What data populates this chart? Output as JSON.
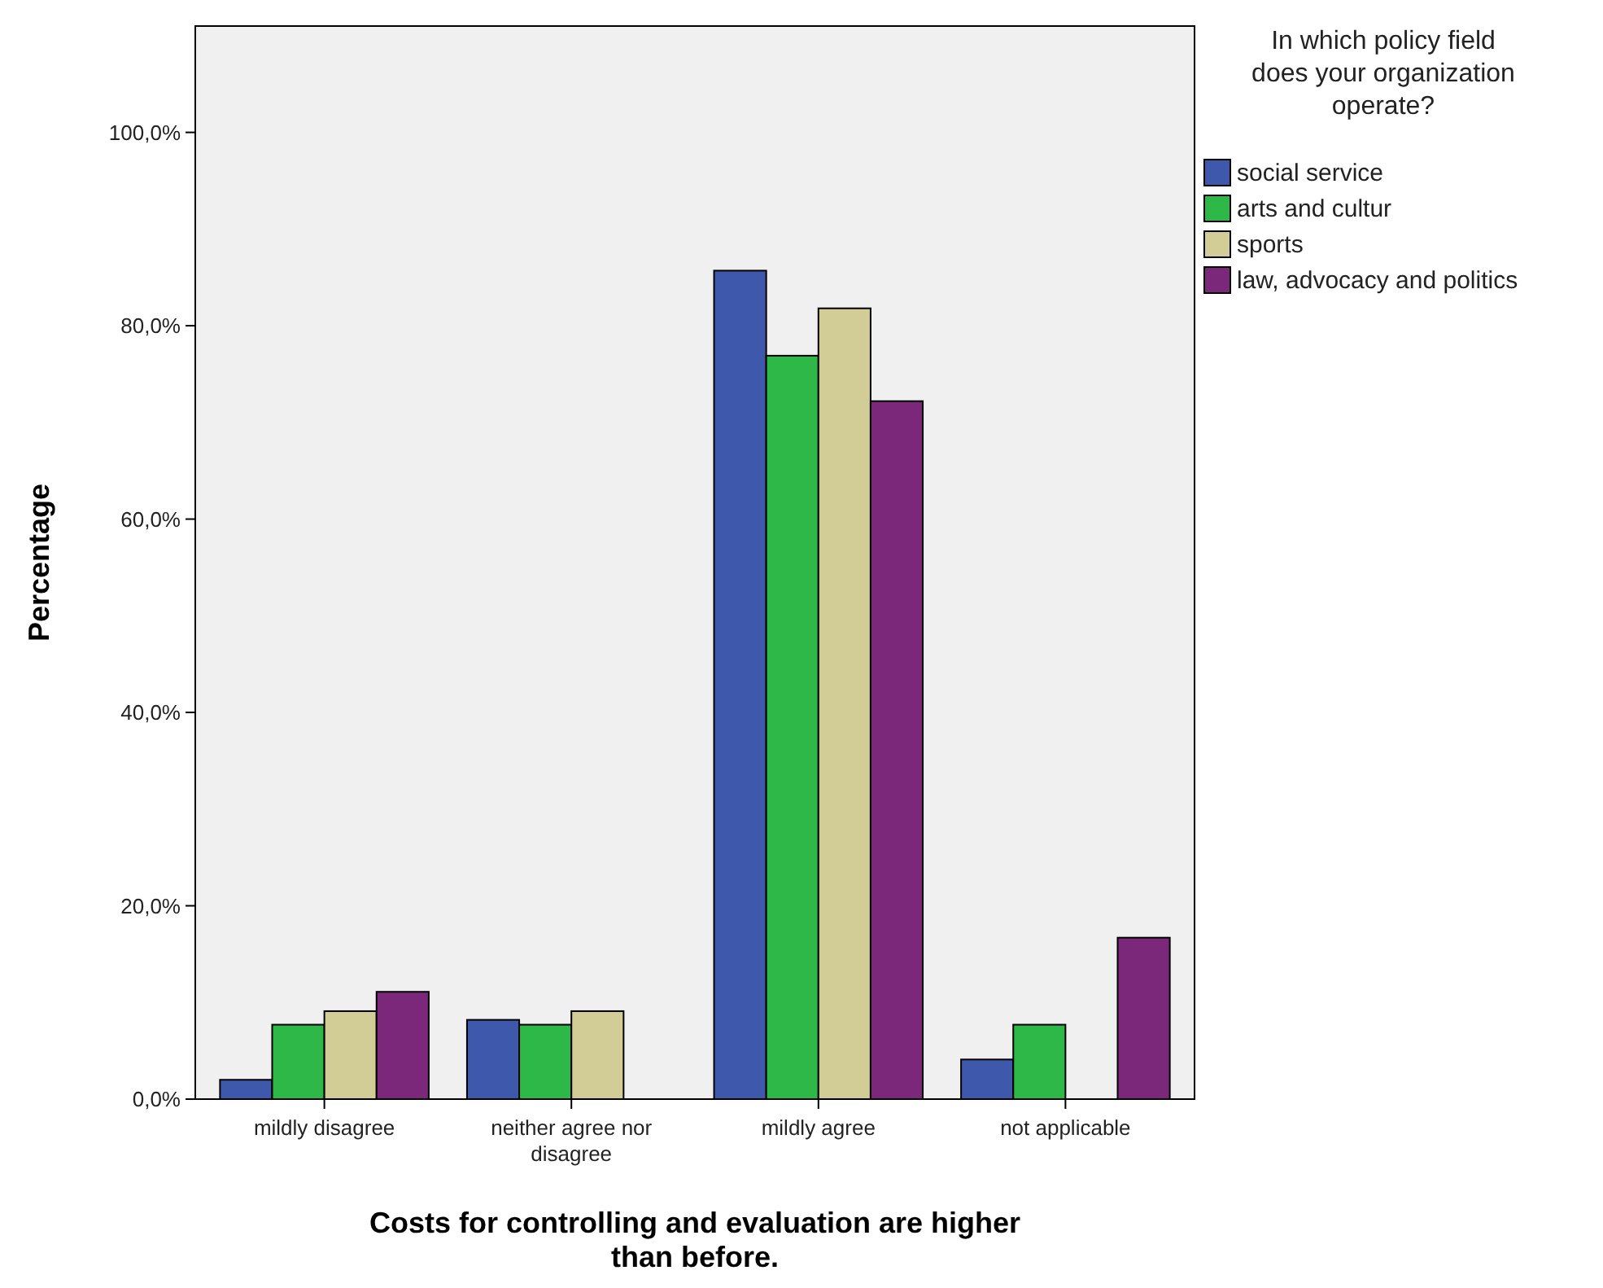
{
  "chart_data": {
    "type": "bar",
    "xlabel": "Costs for controlling and evaluation are higher than before.",
    "ylabel": "Percentage",
    "legend_title": "In which policy field does your organization operate?",
    "categories": [
      "mildly disagree",
      "neither agree nor disagree",
      "mildly agree",
      "not applicable"
    ],
    "series": [
      {
        "name": "social service",
        "color": "#3e58ac",
        "values": [
          2.0,
          8.2,
          85.7,
          4.1
        ]
      },
      {
        "name": "arts and cultur",
        "color": "#2eb848",
        "values": [
          7.7,
          7.7,
          76.9,
          7.7
        ]
      },
      {
        "name": "sports",
        "color": "#d2cd97",
        "values": [
          9.1,
          9.1,
          81.8,
          0
        ]
      },
      {
        "name": "law, advocacy and politics",
        "color": "#7b287b",
        "values": [
          11.1,
          0,
          72.2,
          16.7
        ]
      }
    ],
    "ylim": [
      0,
      111
    ],
    "yticks": [
      {
        "value": 0,
        "label": "0,0%"
      },
      {
        "value": 20,
        "label": "20,0%"
      },
      {
        "value": 40,
        "label": "40,0%"
      },
      {
        "value": 60,
        "label": "60,0%"
      },
      {
        "value": 80,
        "label": "80,0%"
      },
      {
        "value": 100,
        "label": "100,0%"
      }
    ],
    "grid": false,
    "legend": "top right"
  }
}
